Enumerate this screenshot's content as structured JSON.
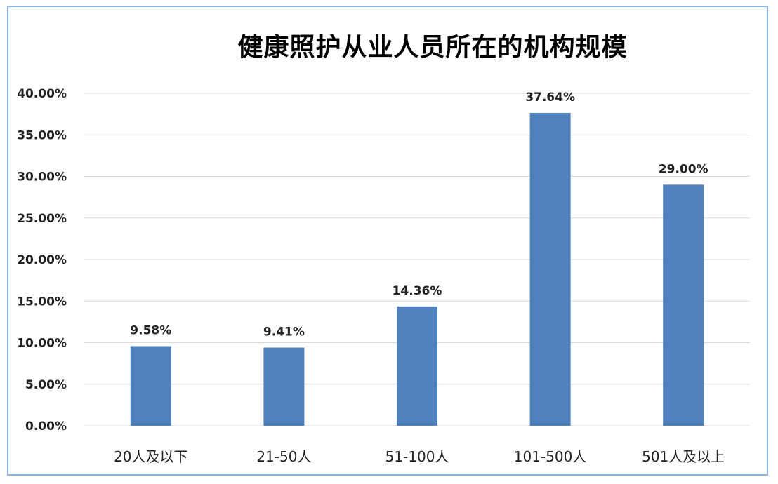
{
  "chart_data": {
    "type": "bar",
    "title": "健康照护从业人员所在的机构规模",
    "categories": [
      "20人及以下",
      "21-50人",
      "51-100人",
      "101-500人",
      "501人及以上"
    ],
    "values": [
      9.58,
      9.41,
      14.36,
      37.64,
      29.0
    ],
    "data_labels": [
      "9.58%",
      "9.41%",
      "14.36%",
      "37.64%",
      "29.00%"
    ],
    "ylim": [
      0,
      40
    ],
    "yticks": [
      "0.00%",
      "5.00%",
      "10.00%",
      "15.00%",
      "20.00%",
      "25.00%",
      "30.00%",
      "35.00%",
      "40.00%"
    ],
    "grid": true,
    "legend": "none",
    "bar_color": "#4f81bd",
    "grid_color": "#d9d9d9"
  }
}
